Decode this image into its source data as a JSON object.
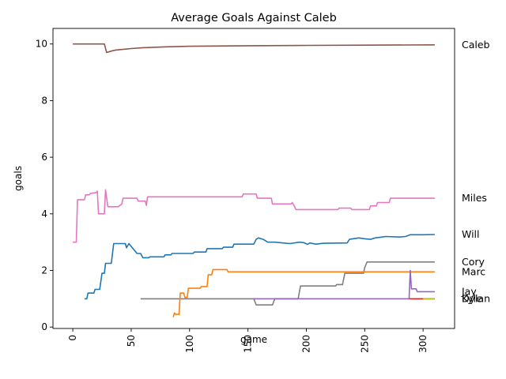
{
  "chart_data": {
    "type": "line",
    "title": "Average Goals Against Caleb",
    "xlabel": "game",
    "ylabel": "goals",
    "xlim": [
      -17,
      327
    ],
    "ylim": [
      -0.05,
      10.55
    ],
    "x_ticks": [
      0,
      50,
      100,
      150,
      200,
      250,
      300
    ],
    "y_ticks": [
      0,
      2,
      4,
      6,
      8,
      10
    ],
    "x_tick_labels": [
      "0",
      "50",
      "100",
      "150",
      "200",
      "250",
      "300"
    ],
    "y_tick_labels": [
      "0",
      "2",
      "4",
      "6",
      "8",
      "10"
    ],
    "grid": false,
    "legend": "none; series names printed at right end of each line",
    "series": [
      {
        "name": "Caleb",
        "color": "#8c564b",
        "points": [
          [
            0,
            10
          ],
          [
            27,
            10
          ],
          [
            29,
            9.7
          ],
          [
            33,
            9.75
          ],
          [
            36,
            9.78
          ],
          [
            40,
            9.8
          ],
          [
            50,
            9.84
          ],
          [
            60,
            9.87
          ],
          [
            80,
            9.9
          ],
          [
            100,
            9.92
          ],
          [
            150,
            9.94
          ],
          [
            200,
            9.95
          ],
          [
            250,
            9.96
          ],
          [
            310,
            9.97
          ]
        ]
      },
      {
        "name": "Miles",
        "color": "#e377c2",
        "points": [
          [
            0,
            3
          ],
          [
            3,
            3
          ],
          [
            4,
            4.5
          ],
          [
            10,
            4.5
          ],
          [
            11,
            4.67
          ],
          [
            14,
            4.67
          ],
          [
            15,
            4.72
          ],
          [
            20,
            4.75
          ],
          [
            21,
            4.8
          ],
          [
            22,
            4
          ],
          [
            27,
            4
          ],
          [
            28,
            4.85
          ],
          [
            30,
            4.25
          ],
          [
            39,
            4.25
          ],
          [
            42,
            4.35
          ],
          [
            43,
            4.55
          ],
          [
            55,
            4.55
          ],
          [
            56,
            4.45
          ],
          [
            62,
            4.45
          ],
          [
            63,
            4.3
          ],
          [
            64,
            4.6
          ],
          [
            145,
            4.6
          ],
          [
            146,
            4.7
          ],
          [
            157,
            4.7
          ],
          [
            158,
            4.55
          ],
          [
            170,
            4.55
          ],
          [
            171,
            4.35
          ],
          [
            187,
            4.35
          ],
          [
            188,
            4.4
          ],
          [
            190,
            4.25
          ],
          [
            191,
            4.15
          ],
          [
            227,
            4.15
          ],
          [
            228,
            4.2
          ],
          [
            238,
            4.2
          ],
          [
            239,
            4.15
          ],
          [
            254,
            4.15
          ],
          [
            255,
            4.28
          ],
          [
            260,
            4.28
          ],
          [
            261,
            4.4
          ],
          [
            271,
            4.4
          ],
          [
            272,
            4.55
          ],
          [
            310,
            4.55
          ]
        ]
      },
      {
        "name": "Will",
        "color": "#1f77b4",
        "points": [
          [
            10,
            1
          ],
          [
            12,
            1
          ],
          [
            13,
            1.2
          ],
          [
            18,
            1.2
          ],
          [
            19,
            1.33
          ],
          [
            23,
            1.33
          ],
          [
            25,
            1.9
          ],
          [
            27,
            1.9
          ],
          [
            28,
            2.25
          ],
          [
            33,
            2.25
          ],
          [
            35,
            2.95
          ],
          [
            45,
            2.95
          ],
          [
            46,
            2.8
          ],
          [
            48,
            2.95
          ],
          [
            52,
            2.75
          ],
          [
            55,
            2.6
          ],
          [
            58,
            2.6
          ],
          [
            60,
            2.45
          ],
          [
            65,
            2.45
          ],
          [
            66,
            2.48
          ],
          [
            78,
            2.48
          ],
          [
            79,
            2.55
          ],
          [
            84,
            2.55
          ],
          [
            85,
            2.6
          ],
          [
            94,
            2.6
          ],
          [
            103,
            2.6
          ],
          [
            104,
            2.65
          ],
          [
            114,
            2.65
          ],
          [
            115,
            2.77
          ],
          [
            128,
            2.77
          ],
          [
            129,
            2.82
          ],
          [
            137,
            2.82
          ],
          [
            138,
            2.93
          ],
          [
            155,
            2.93
          ],
          [
            157,
            3.1
          ],
          [
            159,
            3.15
          ],
          [
            163,
            3.1
          ],
          [
            167,
            3
          ],
          [
            173,
            3
          ],
          [
            180,
            2.97
          ],
          [
            186,
            2.95
          ],
          [
            194,
            3
          ],
          [
            198,
            2.98
          ],
          [
            201,
            2.92
          ],
          [
            203,
            2.97
          ],
          [
            208,
            2.93
          ],
          [
            215,
            2.96
          ],
          [
            235,
            2.97
          ],
          [
            237,
            3.1
          ],
          [
            245,
            3.15
          ],
          [
            250,
            3.12
          ],
          [
            255,
            3.1
          ],
          [
            259,
            3.15
          ],
          [
            265,
            3.18
          ],
          [
            268,
            3.2
          ],
          [
            280,
            3.18
          ],
          [
            285,
            3.2
          ],
          [
            289,
            3.26
          ],
          [
            300,
            3.26
          ],
          [
            310,
            3.27
          ]
        ]
      },
      {
        "name": "Cory",
        "color": "#7f7f7f",
        "points": [
          [
            58,
            1
          ],
          [
            155,
            1
          ],
          [
            157,
            0.78
          ],
          [
            171,
            0.78
          ],
          [
            173,
            1
          ],
          [
            193,
            1
          ],
          [
            195,
            1.45
          ],
          [
            225,
            1.45
          ],
          [
            226,
            1.5
          ],
          [
            231,
            1.5
          ],
          [
            233,
            1.9
          ],
          [
            249,
            1.9
          ],
          [
            250,
            2.1
          ],
          [
            252,
            2.3
          ],
          [
            310,
            2.3
          ]
        ]
      },
      {
        "name": "Marc",
        "color": "#ff7f0e",
        "points": [
          [
            86,
            0.35
          ],
          [
            87,
            0.5
          ],
          [
            88,
            0.45
          ],
          [
            91,
            0.45
          ],
          [
            92,
            1.2
          ],
          [
            95,
            1.2
          ],
          [
            96,
            1.05
          ],
          [
            98,
            1.05
          ],
          [
            99,
            1.37
          ],
          [
            109,
            1.37
          ],
          [
            110,
            1.43
          ],
          [
            115,
            1.43
          ],
          [
            116,
            1.85
          ],
          [
            119,
            1.85
          ],
          [
            120,
            2.03
          ],
          [
            132,
            2.03
          ],
          [
            133,
            1.95
          ],
          [
            310,
            1.95
          ]
        ]
      },
      {
        "name": "Jay",
        "color": "#9467bd",
        "points": [
          [
            155,
            1
          ],
          [
            288,
            1
          ],
          [
            289,
            2
          ],
          [
            290,
            1.35
          ],
          [
            294,
            1.35
          ],
          [
            295,
            1.25
          ],
          [
            310,
            1.25
          ]
        ]
      },
      {
        "name": "Dylan",
        "color": "#d62728",
        "points": [
          [
            288,
            1
          ],
          [
            310,
            1
          ]
        ]
      },
      {
        "name": "Kyle",
        "color": "#bcbd22",
        "points": [
          [
            300,
            1
          ],
          [
            310,
            1
          ]
        ]
      }
    ],
    "end_labels": [
      "Caleb",
      "Miles",
      "Will",
      "Cory",
      "Marc",
      "Jay",
      "Dylan",
      "Kyle"
    ]
  }
}
